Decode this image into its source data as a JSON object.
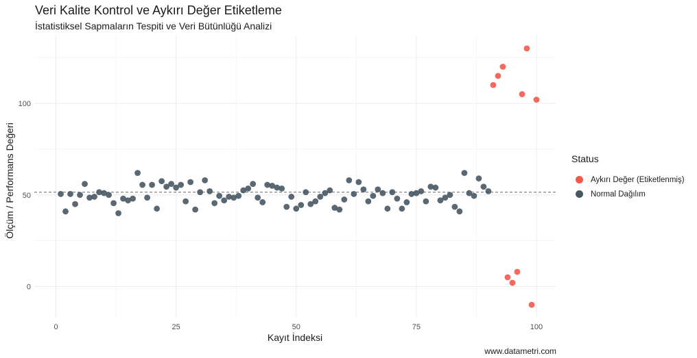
{
  "chart_data": {
    "type": "scatter",
    "title": "Veri Kalite Kontrol ve Aykırı Değer Etiketleme",
    "subtitle": "İstatistiksel Sapmaların Tespiti ve Veri Bütünlüğü Analizi",
    "caption": "www.datametri.com",
    "xlabel": "Kayıt İndeksi",
    "ylabel": "Ölçüm / Performans Değeri",
    "xlim": [
      -4.5,
      104
    ],
    "ylim": [
      -17,
      137
    ],
    "x_ticks": [
      0,
      25,
      50,
      75,
      100
    ],
    "y_ticks": [
      0,
      50,
      100
    ],
    "reference_line": {
      "y": 51.5,
      "style": "dashed"
    },
    "legend": {
      "title": "Status",
      "entries": [
        {
          "label": "Aykırı Değer (Etiketlenmiş)",
          "color": "#f2594b"
        },
        {
          "label": "Normal Dağılım",
          "color": "#475863"
        }
      ]
    },
    "series": [
      {
        "name": "Normal Dağılım",
        "color": "#475863",
        "x": [
          1,
          2,
          3,
          4,
          5,
          6,
          7,
          8,
          9,
          10,
          11,
          12,
          13,
          14,
          15,
          16,
          17,
          18,
          19,
          20,
          21,
          22,
          23,
          24,
          25,
          26,
          27,
          28,
          29,
          30,
          31,
          32,
          33,
          34,
          35,
          36,
          37,
          38,
          39,
          40,
          41,
          42,
          43,
          44,
          45,
          46,
          47,
          48,
          49,
          50,
          51,
          52,
          53,
          54,
          55,
          56,
          57,
          58,
          59,
          60,
          61,
          62,
          63,
          64,
          65,
          66,
          67,
          68,
          69,
          70,
          71,
          72,
          73,
          74,
          75,
          76,
          77,
          78,
          79,
          80,
          81,
          82,
          83,
          84,
          85,
          86,
          87,
          88,
          89,
          90
        ],
        "y": [
          50.5,
          41,
          50.5,
          45,
          50,
          56,
          48.5,
          49,
          51.5,
          51,
          50,
          45.5,
          40,
          48,
          47,
          48,
          62,
          55.5,
          48.5,
          55.5,
          42.5,
          57.5,
          54.5,
          56,
          54,
          55.5,
          46.5,
          57,
          42,
          51.5,
          58,
          52,
          45.5,
          49.5,
          47,
          49,
          48.5,
          49.5,
          52.5,
          53.5,
          56,
          48.5,
          46,
          55.5,
          55,
          54,
          53.5,
          43.5,
          49,
          42.5,
          44.5,
          51.5,
          45,
          46.5,
          49,
          51,
          52.5,
          43,
          42,
          47.5,
          58,
          50.5,
          57,
          53,
          46.5,
          49.5,
          53,
          51,
          42.5,
          51.5,
          48,
          42.5,
          46,
          50.5,
          51,
          52,
          46.5,
          54.5,
          54,
          47,
          48.5,
          50,
          43.5,
          41,
          62,
          51,
          49.5,
          59,
          54.5,
          52
        ]
      },
      {
        "name": "Aykırı Değer (Etiketlenmiş)",
        "color": "#f2594b",
        "x": [
          91,
          92,
          93,
          94,
          95,
          96,
          97,
          98,
          99,
          100
        ],
        "y": [
          110,
          115,
          120,
          5,
          2,
          8,
          105,
          130,
          -10,
          102
        ]
      }
    ]
  }
}
